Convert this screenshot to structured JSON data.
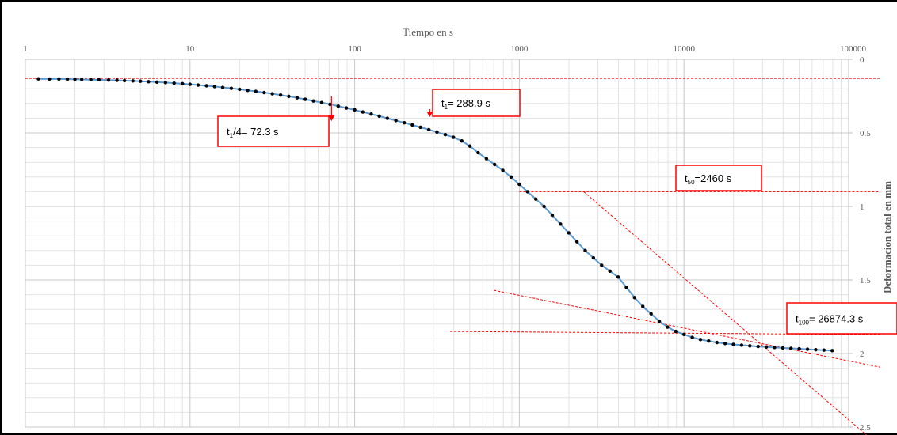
{
  "chart_data": {
    "type": "scatter",
    "title": "",
    "xlabel": "Tiempo en s",
    "ylabel": "Deformacion total en mm",
    "x_scale": "log",
    "xlim": [
      1,
      100000
    ],
    "ylim": [
      0,
      2.5
    ],
    "y_inverted": true,
    "x_ticks": [
      "1",
      "10",
      "100",
      "1000",
      "10000",
      "100000"
    ],
    "y_ticks": [
      "0",
      "0.5",
      "1",
      "1.5",
      "2",
      "2.5"
    ],
    "grid": true,
    "x_axis_position": "top",
    "y_axis_position": "right",
    "line_color": "#5b9bd5",
    "marker_color": "#000000",
    "annotation_color": "#ff0000",
    "series": [
      {
        "x": [
          1.2,
          1.4,
          1.6,
          1.8,
          2.0,
          2.2,
          2.5,
          2.8,
          3.2,
          3.6,
          4.0,
          4.5,
          5.0,
          5.6,
          6.3,
          7.1,
          8.0,
          9.0,
          10,
          11.2,
          12.6,
          14.1,
          15.8,
          17.8,
          20.0,
          22.4,
          25.1,
          28.2,
          31.6,
          35.5,
          39.8,
          44.7,
          50.1,
          56.2,
          63.1,
          70.8,
          79.4,
          89.1,
          100,
          112,
          126,
          141,
          158,
          178,
          200,
          224,
          251,
          282,
          316,
          355,
          398,
          447,
          501,
          562,
          631,
          708,
          794,
          891,
          1000,
          1122,
          1259,
          1413,
          1585,
          1778,
          1995,
          2239,
          2512,
          2818,
          3162,
          3548,
          3981,
          4467,
          5012,
          5623,
          6310,
          7079,
          7943,
          8913,
          10000,
          11220,
          12589,
          14125,
          15849,
          17783,
          19953,
          22387,
          25119,
          28184,
          31623,
          35481,
          39811,
          44668,
          50119,
          56234,
          63096,
          70795,
          79433
        ],
        "y": [
          0.133,
          0.134,
          0.134,
          0.135,
          0.136,
          0.137,
          0.138,
          0.139,
          0.141,
          0.143,
          0.145,
          0.147,
          0.149,
          0.152,
          0.155,
          0.158,
          0.162,
          0.166,
          0.17,
          0.175,
          0.18,
          0.185,
          0.191,
          0.197,
          0.204,
          0.211,
          0.218,
          0.226,
          0.234,
          0.243,
          0.252,
          0.262,
          0.272,
          0.283,
          0.294,
          0.306,
          0.318,
          0.331,
          0.344,
          0.358,
          0.372,
          0.386,
          0.401,
          0.416,
          0.431,
          0.446,
          0.462,
          0.478,
          0.494,
          0.512,
          0.53,
          0.555,
          0.59,
          0.635,
          0.675,
          0.715,
          0.755,
          0.8,
          0.85,
          0.9,
          0.95,
          1.0,
          1.06,
          1.12,
          1.18,
          1.24,
          1.3,
          1.35,
          1.4,
          1.44,
          1.48,
          1.55,
          1.62,
          1.68,
          1.73,
          1.78,
          1.82,
          1.85,
          1.87,
          1.89,
          1.905,
          1.915,
          1.925,
          1.932,
          1.938,
          1.943,
          1.948,
          1.952,
          1.956,
          1.959,
          1.962,
          1.965,
          1.968,
          1.971,
          1.974,
          1.977,
          1.98
        ]
      }
    ],
    "annotations": [
      {
        "id": "t14",
        "label": "t",
        "sub": "1",
        "suffix": "/4= 72.3 s",
        "x": 72.3,
        "y": 0.3
      },
      {
        "id": "t1",
        "label": "t",
        "sub": "1",
        "suffix": "= 288.9 s",
        "x": 288.9,
        "y": 0.4
      },
      {
        "id": "t50",
        "label": "t",
        "sub": "50",
        "suffix": "=2460 s",
        "x": 2460,
        "y": 0.9
      },
      {
        "id": "t100",
        "label": "t",
        "sub": "100",
        "suffix": "= 26874.3 s",
        "x": 26874.3,
        "y": 1.85
      }
    ],
    "reference_lines": [
      {
        "type": "horizontal",
        "y": 0.13,
        "x_from": 1,
        "x_to": 100000
      },
      {
        "type": "horizontal",
        "y": 0.9,
        "x_from": 1000,
        "x_to": 100000
      },
      {
        "type": "line",
        "x1": 380,
        "y1": 1.85,
        "x2": 100000,
        "y2": 1.87
      },
      {
        "type": "line",
        "x1": 700,
        "y1": 1.57,
        "x2": 100000,
        "y2": 2.05
      },
      {
        "type": "line",
        "x1": 2460,
        "y1": 0.9,
        "x2": 100000,
        "y2": 2.45
      }
    ]
  }
}
